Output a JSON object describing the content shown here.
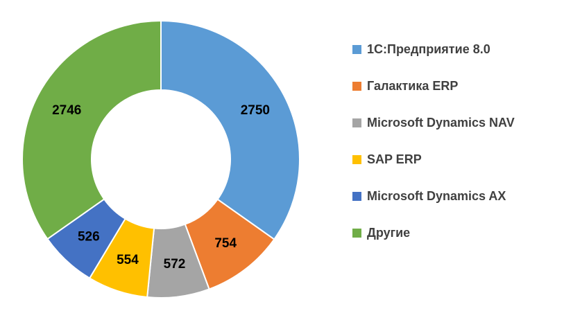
{
  "chart_data": {
    "type": "pie",
    "subtype": "donut",
    "categories": [
      "1С:Предприятие 8.0",
      "Галактика ERP",
      "Microsoft Dynamics NAV",
      "SAP ERP",
      "Microsoft Dynamics AX",
      "Другие"
    ],
    "values": [
      2750,
      754,
      572,
      554,
      526,
      2746
    ],
    "value_labels": [
      "2750",
      "754",
      "572",
      "554",
      "526",
      "2746"
    ],
    "colors": [
      "#5b9bd5",
      "#ed7d31",
      "#a5a5a5",
      "#ffc000",
      "#4472c4",
      "#70ad47"
    ],
    "legend_position": "right",
    "start_angle": "12 o'clock",
    "direction": "clockwise"
  }
}
